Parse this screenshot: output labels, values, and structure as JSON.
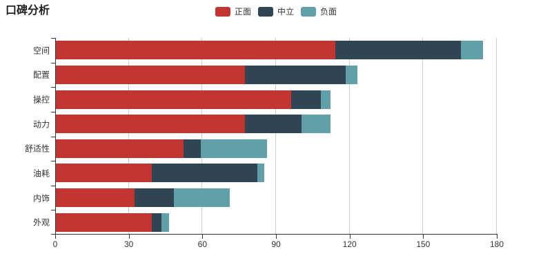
{
  "title": "口碑分析",
  "legend": [
    {
      "label": "正面",
      "color": "#c23531"
    },
    {
      "label": "中立",
      "color": "#2f4554"
    },
    {
      "label": "负面",
      "color": "#61a0a8"
    }
  ],
  "chart_data": {
    "type": "bar",
    "orientation": "horizontal",
    "stacked": true,
    "title": "口碑分析",
    "xlabel": "",
    "ylabel": "",
    "categories": [
      "空间",
      "配置",
      "操控",
      "动力",
      "舒适性",
      "油耗",
      "内饰",
      "外观"
    ],
    "series": [
      {
        "name": "正面",
        "color": "#c23531",
        "values": [
          114,
          77,
          96,
          77,
          52,
          39,
          32,
          39
        ]
      },
      {
        "name": "中立",
        "color": "#2f4554",
        "values": [
          51,
          41,
          12,
          23,
          7,
          43,
          16,
          4
        ]
      },
      {
        "name": "负面",
        "color": "#61a0a8",
        "values": [
          9,
          5,
          4,
          12,
          27,
          3,
          23,
          3
        ]
      }
    ],
    "totals": [
      174,
      123,
      112,
      112,
      86,
      85,
      71,
      46
    ],
    "xlim": [
      0,
      180
    ],
    "xticks": [
      0,
      30,
      60,
      90,
      120,
      150,
      180
    ],
    "grid": true,
    "legend_position": "top-center",
    "axis_color": "#333333",
    "gridline_color": "#cccccc"
  }
}
